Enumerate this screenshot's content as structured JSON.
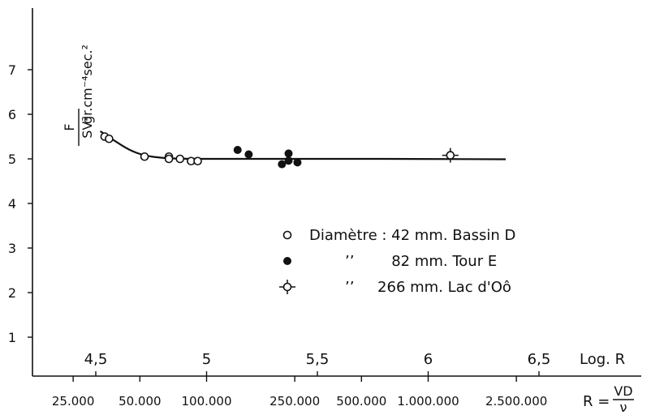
{
  "chart_data": {
    "type": "scatter",
    "title": "",
    "y_axis": {
      "label_fraction": {
        "numerator": "F",
        "denominator": "SV²"
      },
      "unit_label": "gr.cm⁻⁴sec.²",
      "ticks": [
        "1",
        "2",
        "3",
        "4",
        "5",
        "6",
        "7"
      ],
      "ylim": [
        0.5,
        7.8
      ]
    },
    "x_axis_log": {
      "label": "Log. R",
      "ticks": [
        "4,5",
        "5",
        "5,5",
        "6",
        "6,5"
      ],
      "tick_values": [
        4.5,
        5,
        5.5,
        6,
        6.5
      ],
      "xlim": [
        4.15,
        6.95
      ]
    },
    "x_axis_R": {
      "label": "R = VD/ν",
      "label_prefix": "R =",
      "label_fraction": {
        "numerator": "VD",
        "denominator": "ν"
      },
      "ticks": [
        "25.000",
        "50.000",
        "100.000",
        "250.000",
        "500.000",
        "1.000.000",
        "2.500.000"
      ]
    },
    "legend": {
      "placement": "center-right",
      "entries": [
        {
          "marker": "open-circle",
          "text": "Diamètre : 42 mm. Bassin D"
        },
        {
          "marker": "filled-circle",
          "text": "’’        82 mm. Tour E"
        },
        {
          "marker": "open-circle-cross",
          "text": "’’     266 mm. Lac d'Oô"
        }
      ]
    },
    "series": [
      {
        "marker": "open-circle",
        "points": [
          {
            "x": 4.54,
            "y": 5.5
          },
          {
            "x": 4.56,
            "y": 5.45
          },
          {
            "x": 4.72,
            "y": 5.05
          },
          {
            "x": 4.83,
            "y": 5.05
          },
          {
            "x": 4.83,
            "y": 5.0
          },
          {
            "x": 4.88,
            "y": 5.0
          },
          {
            "x": 4.93,
            "y": 4.95
          },
          {
            "x": 4.96,
            "y": 4.95
          }
        ]
      },
      {
        "marker": "filled-circle",
        "points": [
          {
            "x": 5.14,
            "y": 5.2
          },
          {
            "x": 5.19,
            "y": 5.1
          },
          {
            "x": 5.34,
            "y": 4.88
          },
          {
            "x": 5.37,
            "y": 5.12
          },
          {
            "x": 5.37,
            "y": 4.96
          },
          {
            "x": 5.41,
            "y": 4.92
          }
        ]
      },
      {
        "marker": "open-circle-cross",
        "points": [
          {
            "x": 6.1,
            "y": 5.08
          }
        ]
      }
    ],
    "fitted_curve": [
      {
        "x": 4.52,
        "y": 5.62
      },
      {
        "x": 4.58,
        "y": 5.42
      },
      {
        "x": 4.65,
        "y": 5.2
      },
      {
        "x": 4.72,
        "y": 5.07
      },
      {
        "x": 4.8,
        "y": 5.02
      },
      {
        "x": 4.9,
        "y": 5.0
      },
      {
        "x": 5.2,
        "y": 5.0
      },
      {
        "x": 5.6,
        "y": 5.0
      },
      {
        "x": 6.0,
        "y": 5.0
      },
      {
        "x": 6.35,
        "y": 4.99
      }
    ]
  }
}
